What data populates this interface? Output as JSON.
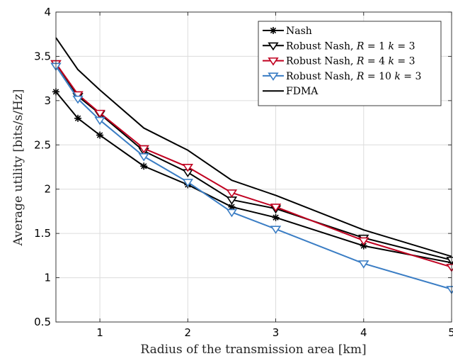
{
  "chart_data": {
    "type": "line",
    "title": "",
    "xlabel": "Radius of the transmission area [km]",
    "ylabel": "Average utility [bits/s/Hz]",
    "xlim": [
      0.5,
      5
    ],
    "ylim": [
      0.5,
      4
    ],
    "xticks": [
      1,
      2,
      3,
      4,
      5
    ],
    "xtick_labels": [
      "1",
      "2",
      "3",
      "4",
      "5"
    ],
    "yticks": [
      0.5,
      1,
      1.5,
      2,
      2.5,
      3,
      3.5,
      4
    ],
    "ytick_labels": [
      "0.5",
      "1",
      "1.5",
      "2",
      "2.5",
      "3",
      "3.5",
      "4"
    ],
    "grid": true,
    "legend_position": "top-right",
    "x": [
      0.5,
      0.75,
      1,
      1.5,
      2,
      2.5,
      3,
      4,
      5
    ],
    "series": [
      {
        "name": "Nash",
        "legend_parts": [
          [
            "Nash",
            false
          ]
        ],
        "color": "#000000",
        "marker": "star",
        "values": [
          3.1,
          2.8,
          2.61,
          2.26,
          2.05,
          1.8,
          1.68,
          1.36,
          1.17
        ]
      },
      {
        "name": "Robust Nash, R = 1 k = 3",
        "legend_parts": [
          [
            "Robust Nash, ",
            false
          ],
          [
            "R",
            true
          ],
          [
            " = 1 ",
            false
          ],
          [
            "k",
            true
          ],
          [
            " = 3",
            false
          ]
        ],
        "color": "#000000",
        "marker": "triangle-down",
        "values": [
          3.42,
          3.05,
          2.85,
          2.43,
          2.19,
          1.88,
          1.78,
          1.45,
          1.2
        ]
      },
      {
        "name": "Robust Nash, R = 4 k = 3",
        "legend_parts": [
          [
            "Robust Nash, ",
            false
          ],
          [
            "R",
            true
          ],
          [
            " = 4 ",
            false
          ],
          [
            "k",
            true
          ],
          [
            " = 3",
            false
          ]
        ],
        "color": "#c00020",
        "marker": "triangle-down",
        "values": [
          3.42,
          3.07,
          2.86,
          2.46,
          2.25,
          1.96,
          1.8,
          1.42,
          1.12
        ]
      },
      {
        "name": "Robust Nash, R = 10 k = 3",
        "legend_parts": [
          [
            "Robust Nash, ",
            false
          ],
          [
            "R",
            true
          ],
          [
            " = 10 ",
            false
          ],
          [
            "k",
            true
          ],
          [
            " = 3",
            false
          ]
        ],
        "color": "#3a7dc4",
        "marker": "triangle-down",
        "values": [
          3.39,
          3.02,
          2.78,
          2.37,
          2.08,
          1.74,
          1.55,
          1.16,
          0.87
        ]
      },
      {
        "name": "FDMA",
        "legend_parts": [
          [
            "FDMA",
            false
          ]
        ],
        "color": "#000000",
        "marker": "none",
        "values": [
          3.71,
          3.35,
          3.12,
          2.69,
          2.44,
          2.1,
          1.93,
          1.54,
          1.24
        ]
      }
    ]
  }
}
